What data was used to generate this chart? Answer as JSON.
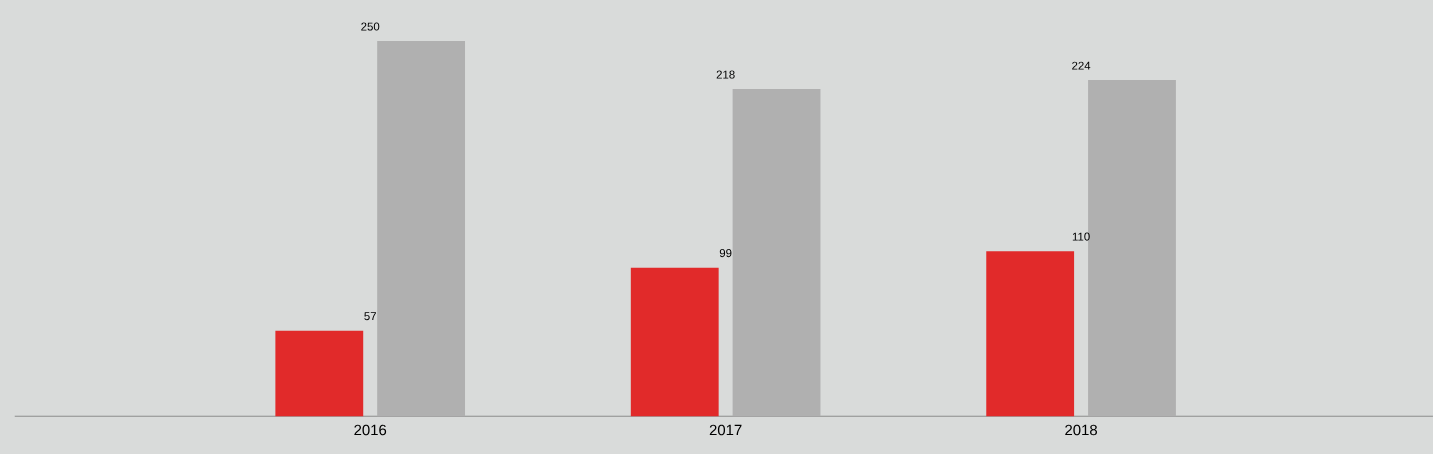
{
  "chart_data": {
    "type": "bar",
    "categories": [
      "2016",
      "2017",
      "2018"
    ],
    "series": [
      {
        "color": "#e12a2a",
        "values": [
          57,
          99,
          110
        ]
      },
      {
        "color": "#b0b0b0",
        "values": [
          250,
          218,
          224
        ]
      }
    ],
    "data_labels": true
  }
}
